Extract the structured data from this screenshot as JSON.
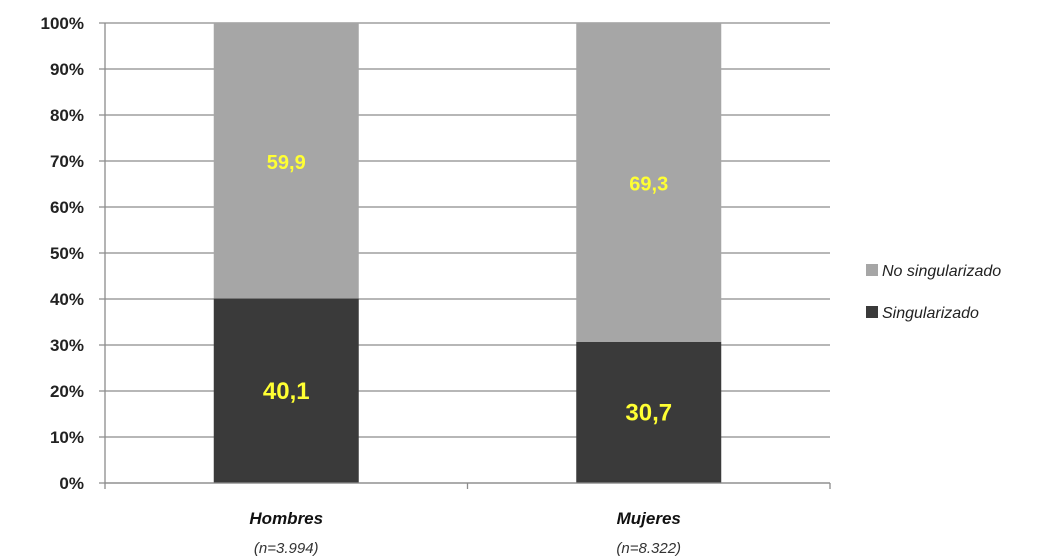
{
  "chart_data": {
    "type": "bar",
    "stacked": true,
    "categories": [
      "Hombres",
      "Mujeres"
    ],
    "category_sublabels": [
      "(n=3.994)",
      "(n=8.322)"
    ],
    "series": [
      {
        "name": "Singularizado",
        "values": [
          40.1,
          30.7
        ],
        "labels": [
          "40,1",
          "30,7"
        ],
        "color": "#3a3a3a"
      },
      {
        "name": "No singularizado",
        "values": [
          59.9,
          69.3
        ],
        "labels": [
          "59,9",
          "69,3"
        ],
        "color": "#a6a6a6"
      }
    ],
    "ylim": [
      0,
      100
    ],
    "yticks": [
      "0%",
      "10%",
      "20%",
      "30%",
      "40%",
      "50%",
      "60%",
      "70%",
      "80%",
      "90%",
      "100%"
    ],
    "grid": true,
    "legend_position": "right",
    "data_label_color": "#ffff33"
  }
}
